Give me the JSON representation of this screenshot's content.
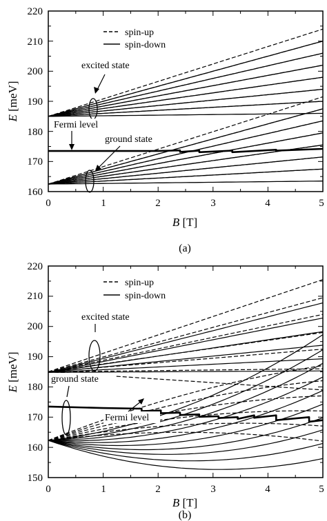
{
  "chart_data": [
    {
      "id": "a",
      "type": "line",
      "caption": "(a)",
      "xlabel_var": "B",
      "xlabel_unit": "[T]",
      "ylabel_var": "E",
      "ylabel_unit": "[meV]",
      "xlim": [
        0,
        5
      ],
      "ylim": [
        160,
        220
      ],
      "xticks": [
        "0",
        "1",
        "2",
        "3",
        "4",
        "5"
      ],
      "yticks": [
        "160",
        "170",
        "180",
        "190",
        "200",
        "210",
        "220"
      ],
      "legend": {
        "position": "top-center",
        "entries": [
          "spin-up",
          "spin-down"
        ]
      },
      "annotations": [
        "excited state",
        "Fermi level",
        "ground state"
      ],
      "grid": false,
      "families": [
        {
          "name": "excited state",
          "E0": 185.0,
          "slopes": [
            0.6,
            1.4,
            2.2,
            3.0,
            3.8,
            4.6,
            5.4
          ]
        },
        {
          "name": "ground state",
          "E0": 162.5,
          "slopes": [
            0.6,
            1.4,
            2.2,
            3.0,
            3.8,
            4.6,
            5.4
          ]
        }
      ],
      "spin_splitting": {
        "spin-up": 0.4,
        "spin-down": -0.4
      },
      "fermi_level": {
        "x": [
          0,
          2.0,
          2.4,
          2.4,
          2.75,
          2.75,
          3.35,
          3.35,
          4.15,
          4.15,
          5.0
        ],
        "y": [
          173.5,
          173.5,
          173.7,
          173.2,
          173.6,
          173.1,
          173.6,
          173.1,
          173.9,
          173.6,
          174.2
        ]
      }
    },
    {
      "id": "b",
      "type": "line",
      "caption": "(b)",
      "xlabel_var": "B",
      "xlabel_unit": "[T]",
      "ylabel_var": "E",
      "ylabel_unit": "[meV]",
      "xlim": [
        0,
        5
      ],
      "ylim": [
        150,
        220
      ],
      "xticks": [
        "0",
        "1",
        "2",
        "3",
        "4",
        "5"
      ],
      "yticks": [
        "150",
        "160",
        "170",
        "180",
        "190",
        "200",
        "210",
        "220"
      ],
      "legend": {
        "position": "top-center",
        "entries": [
          "spin-up",
          "spin-down"
        ]
      },
      "annotations": [
        "excited state",
        "ground state",
        "Fermi level"
      ],
      "grid": false,
      "families": [
        {
          "name": "excited state spin-up",
          "style": "dashed",
          "E0": 185.0,
          "slopes": [
            -1.2,
            0.2,
            1.5,
            2.6,
            3.8,
            4.9,
            6.1
          ],
          "curvature": 0
        },
        {
          "name": "excited state spin-down",
          "style": "solid",
          "E0": 184.8,
          "slopes": [
            0.1,
            0.9,
            1.8,
            2.7,
            3.6,
            4.6
          ],
          "curvature": 0
        },
        {
          "name": "ground state spin-up",
          "style": "dashed",
          "E0": 162.3,
          "slopes": [
            2.2,
            3.2,
            4.2,
            5.2,
            6.2,
            7.2
          ],
          "curvature": -0.45
        },
        {
          "name": "ground state spin-down",
          "style": "solid",
          "E0": 162.3,
          "a": [
            -6.2,
            -5.2,
            -4.3,
            -3.5,
            -2.6,
            -1.7,
            -0.8,
            0.1,
            1.0,
            2.0
          ],
          "curvature": 1.0
        }
      ],
      "fermi_level": {
        "x": [
          0,
          1.0,
          1.7,
          1.7,
          2.05,
          2.05,
          2.4,
          2.4,
          2.75,
          2.75,
          3.1,
          3.1,
          3.45,
          3.45,
          3.75,
          3.75,
          4.15,
          4.15,
          4.75,
          4.75,
          5.0
        ],
        "y": [
          173.5,
          173.0,
          172.8,
          172.0,
          172.2,
          171.3,
          171.5,
          170.7,
          170.9,
          170.1,
          170.3,
          169.7,
          170.0,
          169.4,
          170.6,
          169.8,
          170.6,
          169.0,
          170.0,
          168.5,
          169.0
        ]
      }
    }
  ]
}
